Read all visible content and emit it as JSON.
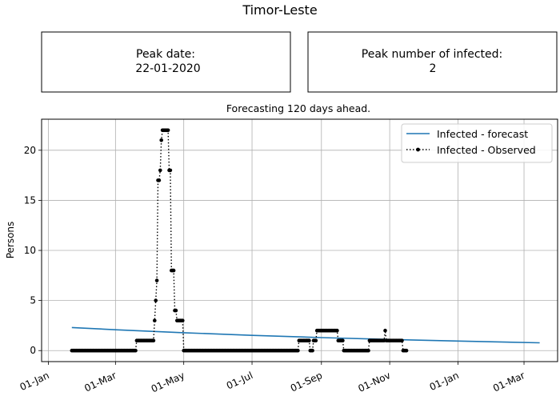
{
  "header": {
    "title": "Timor-Leste",
    "peak_date_label": "Peak date:",
    "peak_date_value": "22-01-2020",
    "peak_infected_label": "Peak number of infected:",
    "peak_infected_value": "2"
  },
  "chart_data": {
    "type": "line",
    "subtitle": "Forecasting 120 days ahead.",
    "xlabel": "",
    "ylabel": "Persons",
    "x_ticks": [
      "01-Jan",
      "01-Mar",
      "01-May",
      "01-Jul",
      "01-Sep",
      "01-Nov",
      "01-Jan",
      "01-Mar"
    ],
    "y_ticks": [
      "0",
      "5",
      "10",
      "15",
      "20"
    ],
    "xlim": [
      "2019-12-26",
      "2021-03-31"
    ],
    "ylim": [
      -1.1,
      23.1
    ],
    "grid": true,
    "legend_position": "top-right",
    "colors": {
      "forecast": "#1f77b4",
      "observed": "#000000"
    },
    "series": [
      {
        "name": "Infected - forecast",
        "style": "solid",
        "points": [
          {
            "x": "2020-01-22",
            "y": 2.3
          },
          {
            "x": "2020-03-01",
            "y": 2.08
          },
          {
            "x": "2020-05-01",
            "y": 1.78
          },
          {
            "x": "2020-07-01",
            "y": 1.52
          },
          {
            "x": "2020-09-01",
            "y": 1.3
          },
          {
            "x": "2020-11-01",
            "y": 1.11
          },
          {
            "x": "2021-01-01",
            "y": 0.95
          },
          {
            "x": "2021-03-15",
            "y": 0.78
          }
        ]
      },
      {
        "name": "Infected - Observed",
        "style": "dotted",
        "segments": [
          {
            "start": "2020-01-22",
            "end": "2020-03-19",
            "y": 0
          },
          {
            "start": "2020-03-20",
            "end": "2020-04-04",
            "y": 1
          },
          {
            "start": "2020-04-05",
            "end": "2020-04-05",
            "y": 3
          },
          {
            "start": "2020-04-06",
            "end": "2020-04-06",
            "y": 5
          },
          {
            "start": "2020-04-07",
            "end": "2020-04-07",
            "y": 7
          },
          {
            "start": "2020-04-08",
            "end": "2020-04-09",
            "y": 17
          },
          {
            "start": "2020-04-10",
            "end": "2020-04-10",
            "y": 18
          },
          {
            "start": "2020-04-11",
            "end": "2020-04-11",
            "y": 21
          },
          {
            "start": "2020-04-12",
            "end": "2020-04-17",
            "y": 22
          },
          {
            "start": "2020-04-18",
            "end": "2020-04-19",
            "y": 18
          },
          {
            "start": "2020-04-20",
            "end": "2020-04-22",
            "y": 8
          },
          {
            "start": "2020-04-23",
            "end": "2020-04-24",
            "y": 4
          },
          {
            "start": "2020-04-25",
            "end": "2020-04-30",
            "y": 3
          },
          {
            "start": "2020-05-01",
            "end": "2020-08-11",
            "y": 0
          },
          {
            "start": "2020-08-12",
            "end": "2020-08-21",
            "y": 1
          },
          {
            "start": "2020-08-22",
            "end": "2020-08-24",
            "y": 0
          },
          {
            "start": "2020-08-25",
            "end": "2020-08-27",
            "y": 1
          },
          {
            "start": "2020-08-28",
            "end": "2020-09-15",
            "y": 2
          },
          {
            "start": "2020-09-16",
            "end": "2020-09-20",
            "y": 1
          },
          {
            "start": "2020-09-21",
            "end": "2020-10-13",
            "y": 0
          },
          {
            "start": "2020-10-14",
            "end": "2020-10-27",
            "y": 1
          },
          {
            "start": "2020-10-28",
            "end": "2020-10-28",
            "y": 2
          },
          {
            "start": "2020-10-29",
            "end": "2020-11-12",
            "y": 1
          },
          {
            "start": "2020-11-13",
            "end": "2020-11-16",
            "y": 0
          }
        ]
      }
    ]
  }
}
